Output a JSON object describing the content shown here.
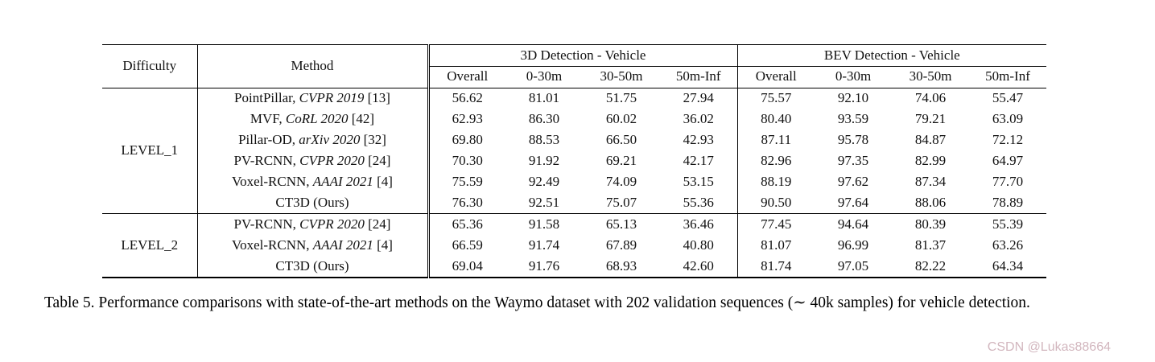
{
  "table": {
    "header": {
      "difficulty": "Difficulty",
      "method": "Method",
      "groups": [
        {
          "label": "3D Detection - Vehicle",
          "cols": [
            "Overall",
            "0-30m",
            "30-50m",
            "50m-Inf"
          ]
        },
        {
          "label": "BEV Detection - Vehicle",
          "cols": [
            "Overall",
            "0-30m",
            "30-50m",
            "50m-Inf"
          ]
        }
      ]
    },
    "sections": [
      {
        "difficulty": "LEVEL_1",
        "rows": [
          {
            "method": {
              "pre": "PointPillar, ",
              "it": "CVPR 2019",
              "post": " [13]"
            },
            "bold": false,
            "values": [
              "56.62",
              "81.01",
              "51.75",
              "27.94",
              "75.57",
              "92.10",
              "74.06",
              "55.47"
            ]
          },
          {
            "method": {
              "pre": "MVF, ",
              "it": "CoRL 2020",
              "post": " [42]"
            },
            "bold": false,
            "values": [
              "62.93",
              "86.30",
              "60.02",
              "36.02",
              "80.40",
              "93.59",
              "79.21",
              "63.09"
            ]
          },
          {
            "method": {
              "pre": "Pillar-OD, ",
              "it": "arXiv 2020",
              "post": " [32]"
            },
            "bold": false,
            "values": [
              "69.80",
              "88.53",
              "66.50",
              "42.93",
              "87.11",
              "95.78",
              "84.87",
              "72.12"
            ]
          },
          {
            "method": {
              "pre": "PV-RCNN, ",
              "it": "CVPR 2020",
              "post": " [24]"
            },
            "bold": false,
            "values": [
              "70.30",
              "91.92",
              "69.21",
              "42.17",
              "82.96",
              "97.35",
              "82.99",
              "64.97"
            ]
          },
          {
            "method": {
              "pre": "Voxel-RCNN, ",
              "it": "AAAI 2021",
              "post": " [4]"
            },
            "bold": false,
            "values": [
              "75.59",
              "92.49",
              "74.09",
              "53.15",
              "88.19",
              "97.62",
              "87.34",
              "77.70"
            ]
          },
          {
            "method": {
              "pre": "CT3D (Ours)",
              "it": "",
              "post": ""
            },
            "bold": true,
            "values": [
              "76.30",
              "92.51",
              "75.07",
              "55.36",
              "90.50",
              "97.64",
              "88.06",
              "78.89"
            ]
          }
        ]
      },
      {
        "difficulty": "LEVEL_2",
        "rows": [
          {
            "method": {
              "pre": "PV-RCNN, ",
              "it": "CVPR 2020",
              "post": " [24]"
            },
            "bold": false,
            "values": [
              "65.36",
              "91.58",
              "65.13",
              "36.46",
              "77.45",
              "94.64",
              "80.39",
              "55.39"
            ]
          },
          {
            "method": {
              "pre": "Voxel-RCNN, ",
              "it": "AAAI 2021",
              "post": " [4]"
            },
            "bold": false,
            "values": [
              "66.59",
              "91.74",
              "67.89",
              "40.80",
              "81.07",
              "96.99",
              "81.37",
              "63.26"
            ]
          },
          {
            "method": {
              "pre": "CT3D (Ours)",
              "it": "",
              "post": ""
            },
            "bold": true,
            "values": [
              "69.04",
              "91.76",
              "68.93",
              "42.60",
              "81.74",
              "97.05",
              "82.22",
              "64.34"
            ]
          }
        ]
      }
    ]
  },
  "caption": "Table 5. Performance comparisons with state-of-the-art methods on the Waymo dataset with 202 validation sequences (∼ 40k samples) for vehicle detection.",
  "watermark": "CSDN @Lukas88664",
  "colors": {
    "text": "#111111",
    "rule": "#000000",
    "watermark": "#d2b6be"
  }
}
